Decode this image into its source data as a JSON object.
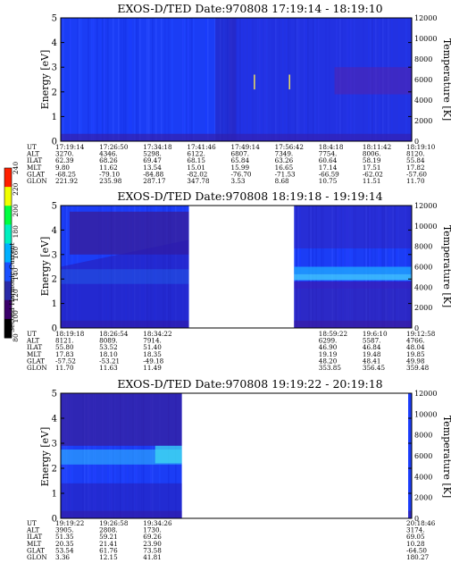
{
  "chart_data": [
    {
      "type": "heatmap",
      "title": "EXOS-D/TED   Date:970808   17:19:14 - 18:19:10",
      "ylabel": "Energy [eV]",
      "y2label": "Temperature [K]",
      "ylim": [
        0,
        5
      ],
      "y2lim": [
        0,
        12000
      ],
      "yticks": [
        "0",
        "1",
        "2",
        "3",
        "4",
        "5"
      ],
      "y2ticks": [
        "0",
        "2000",
        "4000",
        "6000",
        "8000",
        "10000",
        "12000"
      ],
      "coverage": [
        [
          0,
          1
        ]
      ],
      "spikes": [
        0.55,
        0.65
      ],
      "table": {
        "labels": [
          "UT",
          "ALT",
          "ILAT",
          "MLT",
          "GLAT",
          "GLON"
        ],
        "columns": [
          [
            "17:19:14",
            "3270.",
            "62.39",
            "9.80",
            "-68.25",
            "221.92"
          ],
          [
            "17:26:50",
            "4346.",
            "68.26",
            "11.62",
            "-79.10",
            "235.98"
          ],
          [
            "17:34:18",
            "5298.",
            "69.47",
            "13.54",
            "-84.88",
            "287.17"
          ],
          [
            "17:41:46",
            "6122.",
            "68.15",
            "15.01",
            "-82.02",
            "347.78"
          ],
          [
            "17:49:14",
            "6807.",
            "65.84",
            "15.99",
            "-76.70",
            "3.53"
          ],
          [
            "17:56:42",
            "7349.",
            "63.26",
            "16.65",
            "-71.53",
            "8.68"
          ],
          [
            "18:4:18",
            "7754.",
            "60.64",
            "17.14",
            "-66.59",
            "10.75"
          ],
          [
            "18:11:42",
            "8006.",
            "58.19",
            "17.51",
            "-62.02",
            "11.51"
          ],
          [
            "18:19:10",
            "8120.",
            "55.84",
            "17.82",
            "-57.60",
            "11.70"
          ]
        ]
      }
    },
    {
      "type": "heatmap",
      "title": "EXOS-D/TED   Date:970808   18:19:18 - 19:19:14",
      "ylabel": "Energy [eV]",
      "y2label": "Temperature [K]",
      "ylim": [
        0,
        5
      ],
      "y2lim": [
        0,
        12000
      ],
      "yticks": [
        "0",
        "1",
        "2",
        "3",
        "4",
        "5"
      ],
      "y2ticks": [
        "0",
        "2000",
        "4000",
        "6000",
        "8000",
        "10000",
        "12000"
      ],
      "coverage": [
        [
          0,
          0.365
        ],
        [
          0.665,
          1
        ]
      ],
      "spikes": [],
      "table": {
        "labels": [
          "UT",
          "ALT",
          "ILAT",
          "MLT",
          "GLAT",
          "GLON"
        ],
        "columns": [
          [
            "18:19:18",
            "8121.",
            "55.80",
            "17.83",
            "-57.52",
            "11.70"
          ],
          [
            "18:26:54",
            "8089.",
            "53.52",
            "18.10",
            "-53.21",
            "11.63"
          ],
          [
            "18:34:22",
            "7914.",
            "51.40",
            "18.35",
            "-49.18",
            "11.49"
          ],
          [
            "",
            "",
            "",
            "",
            "",
            ""
          ],
          [
            "",
            "",
            "",
            "",
            "",
            ""
          ],
          [
            "",
            "",
            "",
            "",
            "",
            ""
          ],
          [
            "18:59:22",
            "6299.",
            "46.90",
            "19.19",
            "48.20",
            "353.85"
          ],
          [
            "19:6:10",
            "5587.",
            "46.84",
            "19.48",
            "48.41",
            "356.45"
          ],
          [
            "19:12:58",
            "4766.",
            "48.04",
            "19.85",
            "49.98",
            "359.48"
          ]
        ]
      }
    },
    {
      "type": "heatmap",
      "title": "EXOS-D/TED   Date:970808   19:19:22 - 20:19:18",
      "ylabel": "Energy [eV]",
      "y2label": "Temperature [K]",
      "ylim": [
        0,
        5
      ],
      "y2lim": [
        0,
        12000
      ],
      "yticks": [
        "0",
        "1",
        "2",
        "3",
        "4",
        "5"
      ],
      "y2ticks": [
        "0",
        "2000",
        "4000",
        "6000",
        "8000",
        "10000",
        "12000"
      ],
      "coverage": [
        [
          0,
          0.345
        ],
        [
          0.99,
          1
        ]
      ],
      "spikes": [],
      "table": {
        "labels": [
          "UT",
          "ALT",
          "ILAT",
          "MLT",
          "GLAT",
          "GLON"
        ],
        "columns": [
          [
            "19:19:22",
            "3905.",
            "51.35",
            "20.35",
            "53.54",
            "3.36"
          ],
          [
            "19:26:58",
            "2808.",
            "59.21",
            "21.41",
            "61.76",
            "12.15"
          ],
          [
            "19:34:26",
            "1730.",
            "69.26",
            "23.90",
            "73.58",
            "41.81"
          ],
          [
            "",
            "",
            "",
            "",
            "",
            ""
          ],
          [
            "",
            "",
            "",
            "",
            "",
            ""
          ],
          [
            "",
            "",
            "",
            "",
            "",
            ""
          ],
          [
            "",
            "",
            "",
            "",
            "",
            ""
          ],
          [
            "",
            "",
            "",
            "",
            "",
            ""
          ],
          [
            "20:18:46",
            "3174.",
            "69.05",
            "10.28",
            "-64.50",
            "180.27"
          ]
        ]
      }
    }
  ],
  "colorbar": {
    "label": "Second Harmonic Current",
    "ticks": [
      "80",
      "100",
      "120",
      "140",
      "160",
      "180",
      "200",
      "220",
      "240"
    ],
    "colors": [
      "#000000",
      "#3a006a",
      "#2a2aa8",
      "#1a50ff",
      "#00b0ff",
      "#00f0c0",
      "#00ff40",
      "#f0ff00",
      "#ff2000"
    ]
  }
}
